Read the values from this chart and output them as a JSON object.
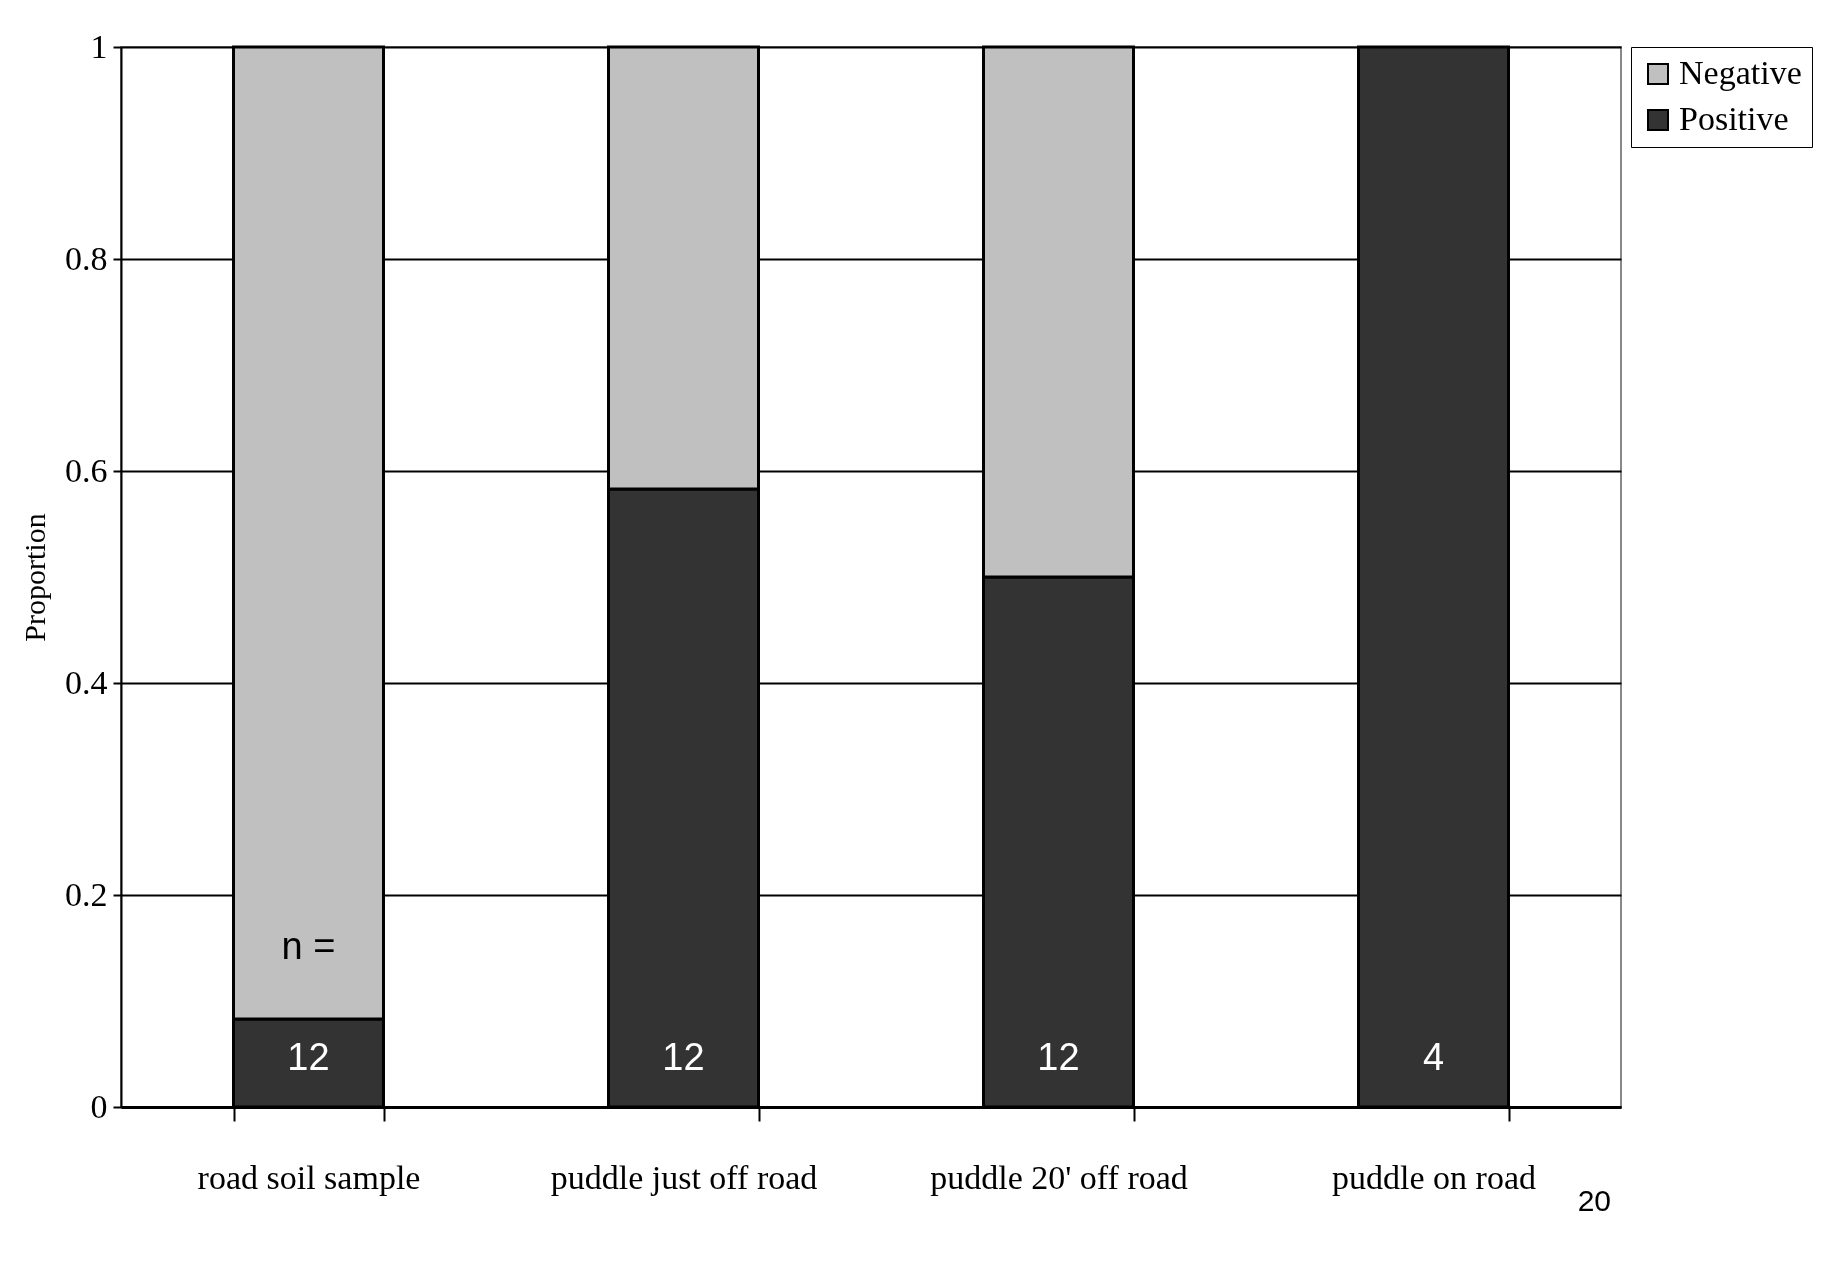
{
  "chart_data": {
    "type": "bar",
    "stacked": true,
    "ylabel": "Proportion",
    "categories": [
      "road soil sample",
      "puddle just off road",
      "puddle 20' off road",
      "puddle on road"
    ],
    "series": [
      {
        "name": "Positive",
        "color": "#333333",
        "values": [
          0.083,
          0.583,
          0.5,
          1
        ]
      },
      {
        "name": "Negative",
        "color": "#c0c0c0",
        "values": [
          0.917,
          0.417,
          0.5,
          0
        ]
      }
    ],
    "ylim": [
      0,
      1
    ],
    "yticks": [
      0,
      0.2,
      0.4,
      0.6,
      0.8,
      1
    ],
    "grid": "y",
    "legend": "top right",
    "annotations": [
      "n =",
      "12",
      "12",
      "12",
      "4",
      "20"
    ]
  }
}
